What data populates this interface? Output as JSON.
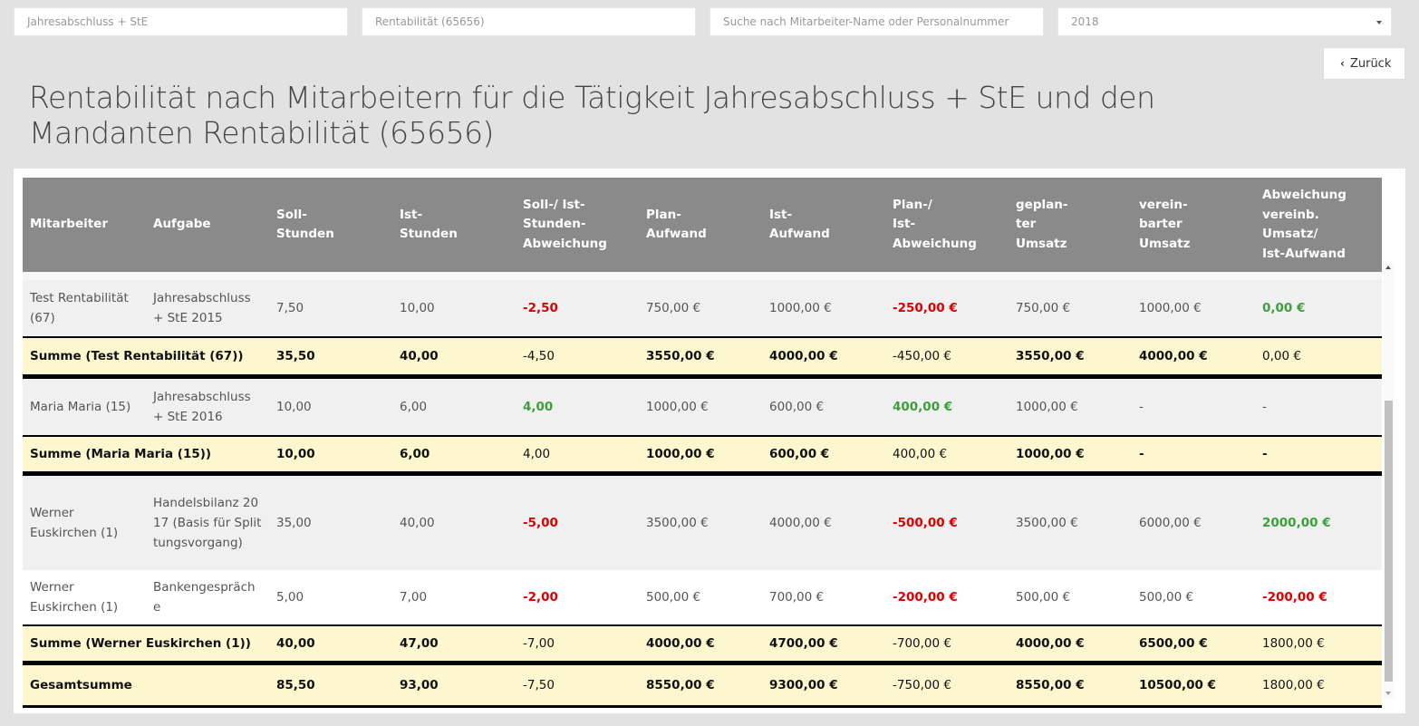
{
  "filters": {
    "activity": "Jahresabschluss + StE",
    "client": "Rentabilität (65656)",
    "search_placeholder": "Suche nach Mitarbeiter-Name oder Personalnummer",
    "year": "2018"
  },
  "back_label": "Zurück",
  "title": "Rentabilität nach Mitarbeitern für die Tätigkeit Jahresabschluss + StE und den Mandanten Rentabilität (65656)",
  "headers": {
    "mitarbeiter": "Mitarbeiter",
    "aufgabe": "Aufgabe",
    "soll_1": "Soll-",
    "soll_2": "Stunden",
    "ist_1": "Ist-",
    "ist_2": "Stunden",
    "sia_1": "Soll-/ Ist-",
    "sia_2": "Stunden-",
    "sia_3": "Abweichung",
    "plan_1": "Plan-",
    "plan_2": "Aufwand",
    "istauf_1": "Ist-",
    "istauf_2": "Aufwand",
    "pia_1": "Plan-/",
    "pia_2": "Ist-",
    "pia_3": "Abweichung",
    "gu_1": "geplan-",
    "gu_2": "ter",
    "gu_3": "Umsatz",
    "vu_1": "verein-",
    "vu_2": "barter",
    "vu_3": "Umsatz",
    "abw_1": "Abweichung",
    "abw_2": "vereinb.",
    "abw_3": "Umsatz/",
    "abw_4": "Ist-Aufwand"
  },
  "rows": [
    {
      "mitarbeiter": "Test Rentabilität (67)",
      "aufgabe": "Jahresabschluss + StE 2015",
      "soll": "7,50",
      "ist": "10,00",
      "sia": "-2,50",
      "plan": "750,00 €",
      "istauf": "1000,00 €",
      "pia": "-250,00 €",
      "gu": "750,00 €",
      "vu": "1000,00 €",
      "abw": "0,00 €"
    },
    {
      "mitarbeiter": "Summe (Test Rentabilität (67))",
      "soll": "35,50",
      "ist": "40,00",
      "sia": "-4,50",
      "plan": "3550,00 €",
      "istauf": "4000,00 €",
      "pia": "-450,00 €",
      "gu": "3550,00 €",
      "vu": "4000,00 €",
      "abw": "0,00 €"
    },
    {
      "mitarbeiter": "Maria Maria (15)",
      "aufgabe": "Jahresabschluss + StE 2016",
      "soll": "10,00",
      "ist": "6,00",
      "sia": "4,00",
      "plan": "1000,00 €",
      "istauf": "600,00 €",
      "pia": "400,00 €",
      "gu": "1000,00 €",
      "vu": "-",
      "abw": "-"
    },
    {
      "mitarbeiter": "Summe (Maria Maria (15))",
      "soll": "10,00",
      "ist": "6,00",
      "sia": "4,00",
      "plan": "1000,00 €",
      "istauf": "600,00 €",
      "pia": "400,00 €",
      "gu": "1000,00 €",
      "vu": "-",
      "abw": "-"
    },
    {
      "mitarbeiter": "Werner Euskirchen (1)",
      "aufgabe": "Handelsbilanz 2017 (Basis für Splittungsvorgang)",
      "soll": "35,00",
      "ist": "40,00",
      "sia": "-5,00",
      "plan": "3500,00 €",
      "istauf": "4000,00 €",
      "pia": "-500,00 €",
      "gu": "3500,00 €",
      "vu": "6000,00 €",
      "abw": "2000,00 €"
    },
    {
      "mitarbeiter": "Werner Euskirchen (1)",
      "aufgabe": "Bankengespräche",
      "soll": "5,00",
      "ist": "7,00",
      "sia": "-2,00",
      "plan": "500,00 €",
      "istauf": "700,00 €",
      "pia": "-200,00 €",
      "gu": "500,00 €",
      "vu": "500,00 €",
      "abw": "-200,00 €"
    },
    {
      "mitarbeiter": "Summe (Werner Euskirchen (1))",
      "soll": "40,00",
      "ist": "47,00",
      "sia": "-7,00",
      "plan": "4000,00 €",
      "istauf": "4700,00 €",
      "pia": "-700,00 €",
      "gu": "4000,00 €",
      "vu": "6500,00 €",
      "abw": "1800,00 €"
    },
    {
      "mitarbeiter": "Gesamtsumme",
      "soll": "85,50",
      "ist": "93,00",
      "sia": "-7,50",
      "plan": "8550,00 €",
      "istauf": "9300,00 €",
      "pia": "-750,00 €",
      "gu": "8550,00 €",
      "vu": "10500,00 €",
      "abw": "1800,00 €"
    }
  ],
  "colors": {
    "negative": "#dd0000",
    "positive": "#3c9f3c",
    "sum_background": "#fdf7d0",
    "header_background": "#8a8a8a"
  }
}
